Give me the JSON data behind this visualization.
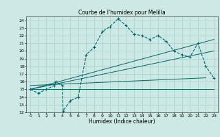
{
  "title": "Courbe de l'humidex pour Melilla",
  "xlabel": "Humidex (Indice chaleur)",
  "xlim": [
    -0.5,
    23.5
  ],
  "ylim": [
    12,
    24.5
  ],
  "yticks": [
    12,
    13,
    14,
    15,
    16,
    17,
    18,
    19,
    20,
    21,
    22,
    23,
    24
  ],
  "xticks": [
    0,
    1,
    2,
    3,
    4,
    5,
    6,
    7,
    8,
    9,
    10,
    11,
    12,
    13,
    14,
    15,
    16,
    17,
    18,
    19,
    20,
    21,
    22,
    23
  ],
  "bg_color": "#cce9e5",
  "grid_color": "#aed4cf",
  "line_color": "#006666",
  "main_line_x": [
    0,
    1,
    2,
    3,
    3.2,
    4,
    4.1,
    5,
    6,
    7,
    8,
    9,
    10,
    11,
    12,
    13,
    14,
    15,
    16,
    17,
    18,
    19,
    20,
    21,
    22,
    23
  ],
  "main_line_y": [
    15,
    14.5,
    15,
    15.5,
    16.0,
    15.5,
    12.2,
    13.5,
    14.0,
    19.5,
    20.5,
    22.5,
    23.2,
    24.2,
    23.3,
    22.2,
    22.0,
    21.5,
    22.0,
    21.3,
    20.0,
    19.5,
    19.2,
    21.0,
    18.0,
    16.5
  ],
  "line1_x": [
    0,
    23
  ],
  "line1_y": [
    15.0,
    15.0
  ],
  "line2_x": [
    0,
    23
  ],
  "line2_y": [
    15.0,
    20.0
  ],
  "line3_x": [
    0,
    23
  ],
  "line3_y": [
    15.0,
    21.5
  ],
  "line4_x": [
    0,
    22
  ],
  "line4_y": [
    15.5,
    16.5
  ]
}
